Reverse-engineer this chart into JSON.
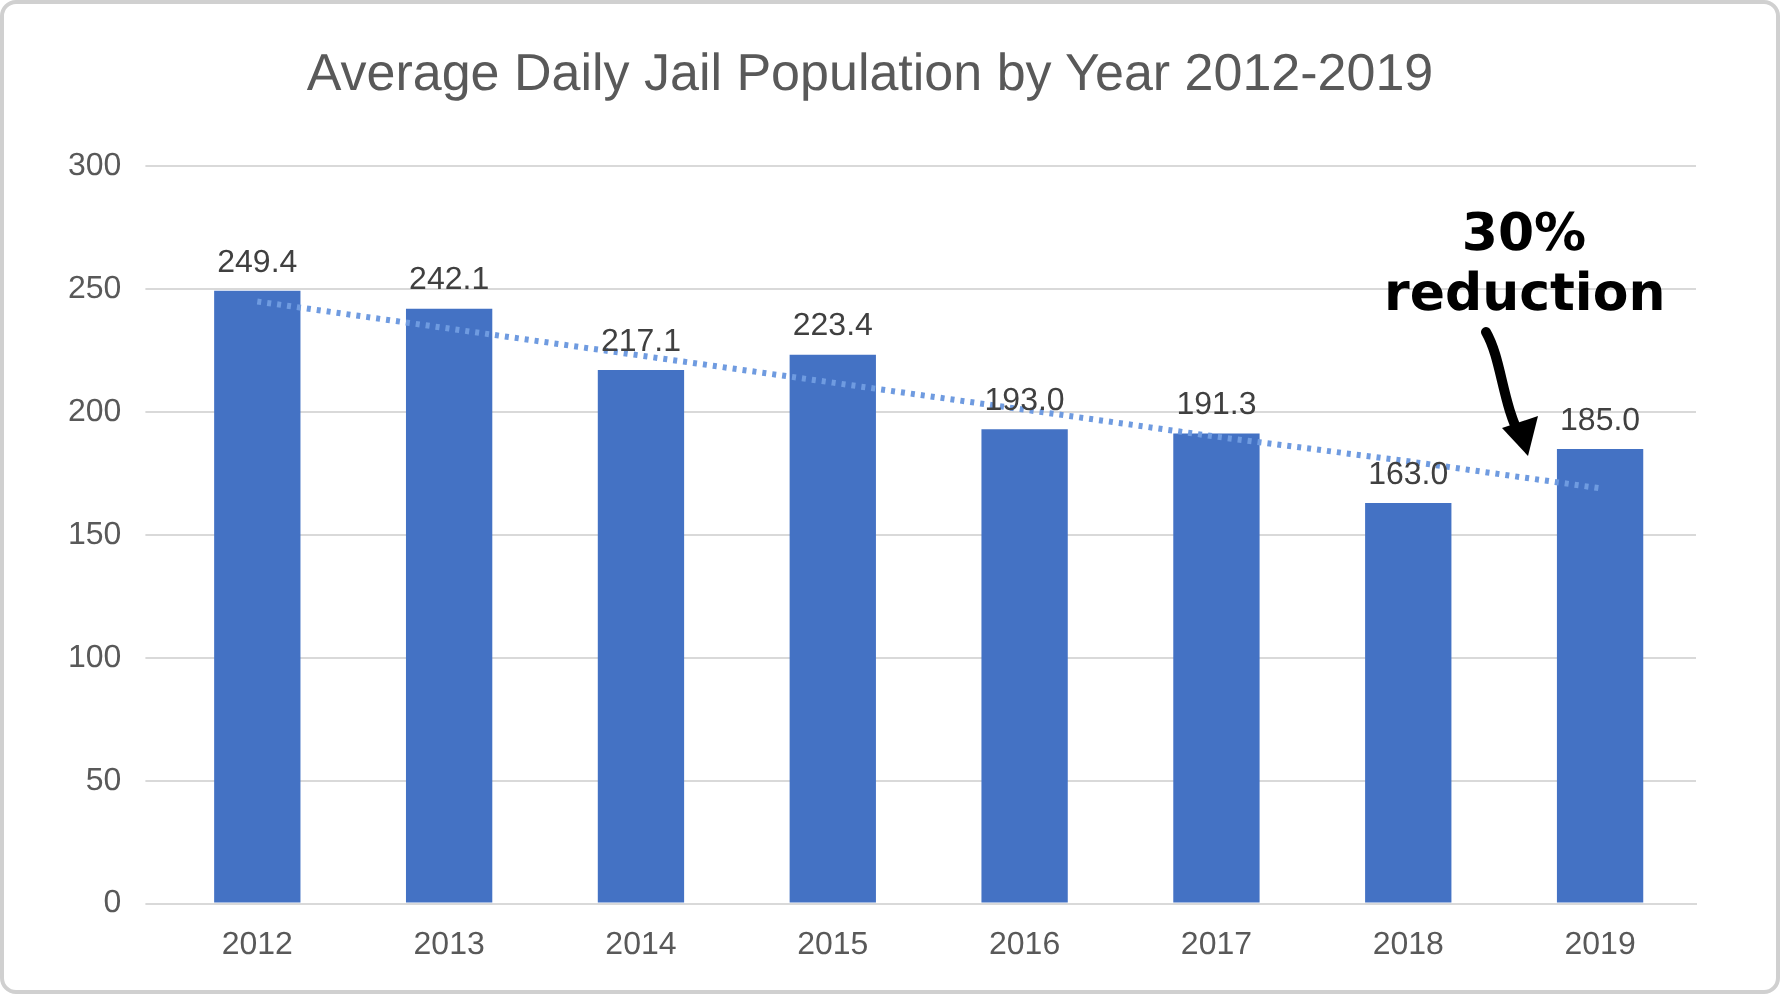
{
  "chart_data": {
    "type": "bar",
    "title": "Average Daily Jail Population by Year 2012-2019",
    "categories": [
      "2012",
      "2013",
      "2014",
      "2015",
      "2016",
      "2017",
      "2018",
      "2019"
    ],
    "series": [
      {
        "color": "#4472c4",
        "values": [
          249.4,
          242.1,
          217.1,
          223.4,
          193.0,
          191.3,
          163.0,
          185.0
        ],
        "value_labels": [
          "249.4",
          "242.1",
          "217.1",
          "223.4",
          "193.0",
          "191.3",
          "163.0",
          "185.0"
        ]
      },
      {
        "type": "line",
        "color": "#6f9be0",
        "values": [
          245,
          234,
          223,
          212,
          201,
          190,
          180,
          169
        ],
        "line_style": "dotted",
        "marker": "none"
      }
    ],
    "ylim": [
      0,
      300
    ],
    "yticks": [
      0,
      50,
      100,
      150,
      200,
      250,
      300
    ],
    "grid": "y",
    "legend": false,
    "annotations": [
      "30% reduction"
    ]
  }
}
